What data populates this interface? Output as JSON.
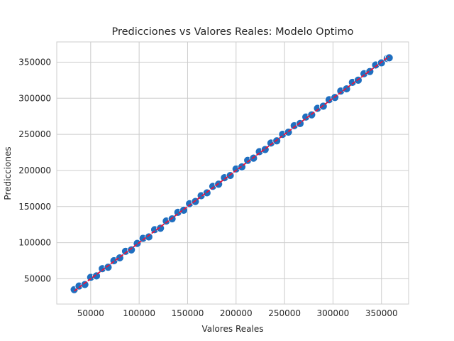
{
  "chart_data": {
    "type": "scatter",
    "title": "Predicciones vs Valores Reales: Modelo Optimo",
    "xlabel": "Valores Reales",
    "ylabel": "Predicciones",
    "xlim": [
      15000,
      378000
    ],
    "ylim": [
      15000,
      378000
    ],
    "x_ticks": [
      50000,
      100000,
      150000,
      200000,
      250000,
      300000,
      350000
    ],
    "y_ticks": [
      50000,
      100000,
      150000,
      200000,
      250000,
      300000,
      350000
    ],
    "x_tick_labels": [
      "50000",
      "100000",
      "150000",
      "200000",
      "250000",
      "300000",
      "350000"
    ],
    "y_tick_labels": [
      "50000",
      "100000",
      "150000",
      "200000",
      "250000",
      "300000",
      "350000"
    ],
    "grid": true,
    "point_color": "#1f6fc0",
    "point_edge_color": "#ffffff",
    "line_color": "#e8143c",
    "series": [
      {
        "kind": "points",
        "x": [
          33000,
          38000,
          44000,
          50000,
          56000,
          62000,
          68000,
          74000,
          80000,
          86000,
          92000,
          98000,
          104000,
          110000,
          116000,
          122000,
          128000,
          134000,
          140000,
          146000,
          152000,
          158000,
          164000,
          170000,
          176000,
          182000,
          188000,
          194000,
          200000,
          206000,
          212000,
          218000,
          224000,
          230000,
          236000,
          242000,
          248000,
          254000,
          260000,
          266000,
          272000,
          278000,
          284000,
          290000,
          296000,
          302000,
          308000,
          314000,
          320000,
          326000,
          332000,
          338000,
          344000,
          350000,
          356000,
          358000
        ],
        "y": [
          35000,
          40000,
          42000,
          52000,
          54000,
          64000,
          66000,
          75000,
          79000,
          88000,
          90000,
          99000,
          106000,
          108000,
          118000,
          120000,
          130000,
          133000,
          142000,
          145000,
          154000,
          157000,
          165000,
          169000,
          178000,
          181000,
          190000,
          193000,
          202000,
          205000,
          214000,
          217000,
          226000,
          229000,
          238000,
          241000,
          250000,
          253000,
          262000,
          265000,
          274000,
          277000,
          286000,
          289000,
          298000,
          301000,
          310000,
          313000,
          322000,
          325000,
          334000,
          337000,
          346000,
          349000,
          355000,
          356000
        ]
      },
      {
        "kind": "line",
        "x": [
          33000,
          358000
        ],
        "y": [
          33000,
          358000
        ]
      }
    ]
  }
}
